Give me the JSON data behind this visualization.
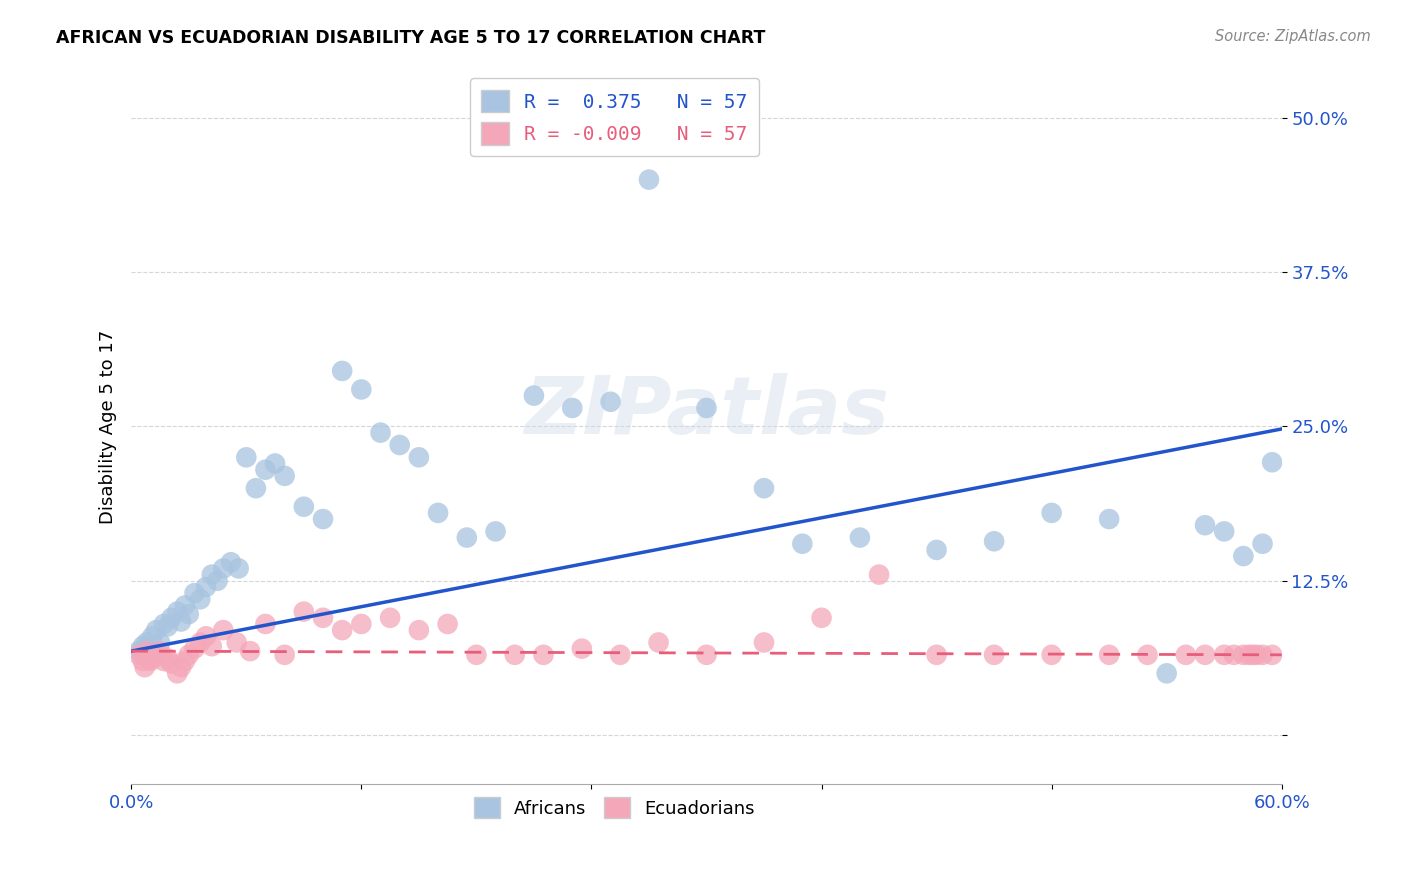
{
  "title": "AFRICAN VS ECUADORIAN DISABILITY AGE 5 TO 17 CORRELATION CHART",
  "source": "Source: ZipAtlas.com",
  "ylabel": "Disability Age 5 to 17",
  "xlim": [
    0.0,
    0.6
  ],
  "ylim": [
    -0.04,
    0.54
  ],
  "yticks": [
    0.0,
    0.125,
    0.25,
    0.375,
    0.5
  ],
  "ytick_labels": [
    "",
    "12.5%",
    "25.0%",
    "37.5%",
    "50.0%"
  ],
  "xticks": [
    0.0,
    0.12,
    0.24,
    0.36,
    0.48,
    0.6
  ],
  "xtick_labels": [
    "0.0%",
    "",
    "",
    "",
    "",
    "60.0%"
  ],
  "african_color": "#a8c4e0",
  "ecuadorian_color": "#f4a7b9",
  "trend_african_color": "#2255cc",
  "trend_ecuadorian_color": "#e85d7a",
  "background_color": "#ffffff",
  "watermark": "ZIPatlas",
  "legend_R_african": "0.375",
  "legend_R_ecuadorian": "-0.009",
  "legend_N": "57",
  "af_trend_x0": 0.0,
  "af_trend_y0": 0.068,
  "af_trend_x1": 0.6,
  "af_trend_y1": 0.248,
  "ec_trend_x0": 0.0,
  "ec_trend_y0": 0.068,
  "ec_trend_x1": 0.6,
  "ec_trend_y1": 0.065,
  "african_x": [
    0.004,
    0.006,
    0.007,
    0.008,
    0.009,
    0.01,
    0.011,
    0.013,
    0.015,
    0.017,
    0.019,
    0.021,
    0.024,
    0.026,
    0.028,
    0.03,
    0.033,
    0.036,
    0.039,
    0.042,
    0.045,
    0.048,
    0.052,
    0.056,
    0.06,
    0.065,
    0.07,
    0.075,
    0.08,
    0.09,
    0.1,
    0.11,
    0.12,
    0.13,
    0.14,
    0.15,
    0.16,
    0.175,
    0.19,
    0.21,
    0.23,
    0.25,
    0.27,
    0.3,
    0.33,
    0.35,
    0.38,
    0.42,
    0.45,
    0.48,
    0.51,
    0.54,
    0.56,
    0.57,
    0.58,
    0.59,
    0.595
  ],
  "african_y": [
    0.068,
    0.072,
    0.065,
    0.075,
    0.07,
    0.068,
    0.08,
    0.085,
    0.075,
    0.09,
    0.088,
    0.095,
    0.1,
    0.092,
    0.105,
    0.098,
    0.115,
    0.11,
    0.12,
    0.13,
    0.125,
    0.135,
    0.14,
    0.135,
    0.225,
    0.2,
    0.215,
    0.22,
    0.21,
    0.185,
    0.175,
    0.295,
    0.28,
    0.245,
    0.235,
    0.225,
    0.18,
    0.16,
    0.165,
    0.275,
    0.265,
    0.27,
    0.45,
    0.265,
    0.2,
    0.155,
    0.16,
    0.15,
    0.157,
    0.18,
    0.175,
    0.05,
    0.17,
    0.165,
    0.145,
    0.155,
    0.221
  ],
  "ecuadorian_x": [
    0.004,
    0.006,
    0.007,
    0.008,
    0.009,
    0.01,
    0.011,
    0.013,
    0.015,
    0.017,
    0.019,
    0.021,
    0.024,
    0.026,
    0.028,
    0.03,
    0.033,
    0.036,
    0.039,
    0.042,
    0.048,
    0.055,
    0.062,
    0.07,
    0.08,
    0.09,
    0.1,
    0.11,
    0.12,
    0.135,
    0.15,
    0.165,
    0.18,
    0.2,
    0.215,
    0.235,
    0.255,
    0.275,
    0.3,
    0.33,
    0.36,
    0.39,
    0.42,
    0.45,
    0.48,
    0.51,
    0.53,
    0.55,
    0.56,
    0.57,
    0.575,
    0.58,
    0.583,
    0.585,
    0.587,
    0.59,
    0.595
  ],
  "ecuadorian_y": [
    0.065,
    0.06,
    0.055,
    0.068,
    0.065,
    0.06,
    0.062,
    0.065,
    0.068,
    0.06,
    0.062,
    0.058,
    0.05,
    0.055,
    0.06,
    0.065,
    0.07,
    0.075,
    0.08,
    0.072,
    0.085,
    0.075,
    0.068,
    0.09,
    0.065,
    0.1,
    0.095,
    0.085,
    0.09,
    0.095,
    0.085,
    0.09,
    0.065,
    0.065,
    0.065,
    0.07,
    0.065,
    0.075,
    0.065,
    0.075,
    0.095,
    0.13,
    0.065,
    0.065,
    0.065,
    0.065,
    0.065,
    0.065,
    0.065,
    0.065,
    0.065,
    0.065,
    0.065,
    0.065,
    0.065,
    0.065,
    0.065
  ]
}
